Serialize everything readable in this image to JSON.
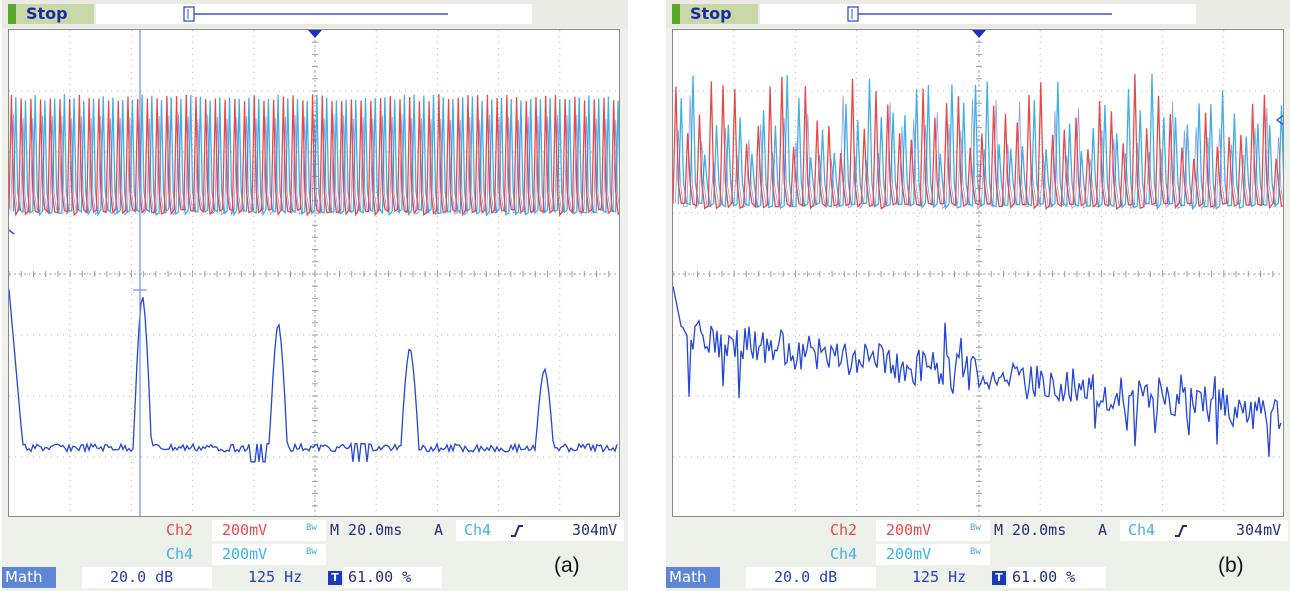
{
  "scopes": [
    {
      "panel_label": "(a)",
      "status": "Stop",
      "ch2": {
        "label": "Ch2",
        "scale": "200mV"
      },
      "ch4": {
        "label": "Ch4",
        "scale": "200mV"
      },
      "timebase": "M 20.0ms",
      "trigger": {
        "mode": "A",
        "source": "Ch4",
        "slope_icon": "rising-edge-icon",
        "level": "304mV"
      },
      "math": {
        "label": "Math",
        "scale": "20.0 dB",
        "span": "125 Hz"
      },
      "trigger_position": "61.00 %"
    },
    {
      "panel_label": "(b)",
      "status": "Stop",
      "ch2": {
        "label": "Ch2",
        "scale": "200mV"
      },
      "ch4": {
        "label": "Ch4",
        "scale": "200mV"
      },
      "timebase": "M 20.0ms",
      "trigger": {
        "mode": "A",
        "source": "Ch4",
        "slope_icon": "rising-edge-icon",
        "level": "304mV"
      },
      "math": {
        "label": "Math",
        "scale": "20.0 dB",
        "span": "125 Hz"
      },
      "trigger_position": "61.00 %"
    }
  ],
  "colors": {
    "ch2": "#e84848",
    "ch4": "#40b0e8",
    "math": "#2346d8",
    "grid": "#b4b4b4"
  },
  "chart_data": [
    {
      "type": "line",
      "title": "(a)",
      "grid": true,
      "divisions": {
        "x": 10,
        "y": 8
      },
      "series": [
        {
          "name": "Ch2",
          "description": "periodic waveform, ~63 cycles across screen",
          "cycles": 63,
          "top_div": 1.05,
          "bottom_div": 3.0
        },
        {
          "name": "Ch4",
          "description": "periodic waveform, ~63 cycles across screen",
          "cycles": 63,
          "top_div": 1.05,
          "bottom_div": 3.0
        },
        {
          "name": "Math",
          "description": "FFT spectrum (dB)",
          "baseline_div": 6.85,
          "peaks": [
            {
              "x_div": 0.05,
              "y_div": 4.25
            },
            {
              "x_div": 2.18,
              "y_div": 4.35
            },
            {
              "x_div": 4.4,
              "y_div": 4.8
            },
            {
              "x_div": 6.55,
              "y_div": 5.2
            },
            {
              "x_div": 8.75,
              "y_div": 5.55
            }
          ]
        }
      ]
    },
    {
      "type": "line",
      "title": "(b)",
      "grid": true,
      "divisions": {
        "x": 10,
        "y": 8
      },
      "series": [
        {
          "name": "Ch2",
          "description": "irregular waveform with varying peaks",
          "cycles": 52,
          "top_div": 0.7,
          "bottom_div": 2.9
        },
        {
          "name": "Ch4",
          "description": "irregular waveform with varying peaks",
          "cycles": 52,
          "top_div": 0.7,
          "bottom_div": 2.9
        },
        {
          "name": "Math",
          "description": "FFT spectrum (dB), broadband / noisy",
          "baseline_div": 6.0,
          "first_value_div": 4.2
        }
      ]
    }
  ]
}
